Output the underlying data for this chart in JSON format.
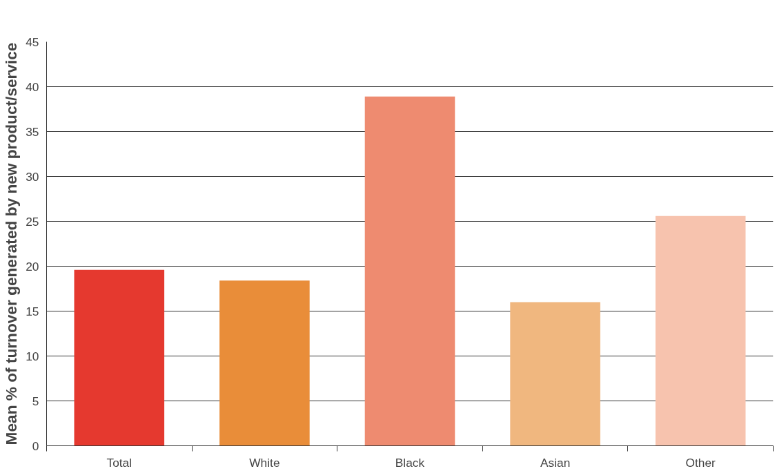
{
  "chart_data": {
    "type": "bar",
    "ylabel": "Mean % of turnover generated by new product/service",
    "categories": [
      "Total",
      "White",
      "Black",
      "Asian",
      "Other"
    ],
    "values": [
      19.6,
      18.4,
      38.9,
      16.0,
      25.6
    ],
    "colors": [
      "#e5392f",
      "#e98d39",
      "#ee8b70",
      "#f0b77f",
      "#f7c3ae"
    ],
    "ylim": [
      0,
      45
    ],
    "yticks": [
      0,
      5,
      10,
      15,
      20,
      25,
      30,
      35,
      40,
      45
    ],
    "grid": "y"
  }
}
